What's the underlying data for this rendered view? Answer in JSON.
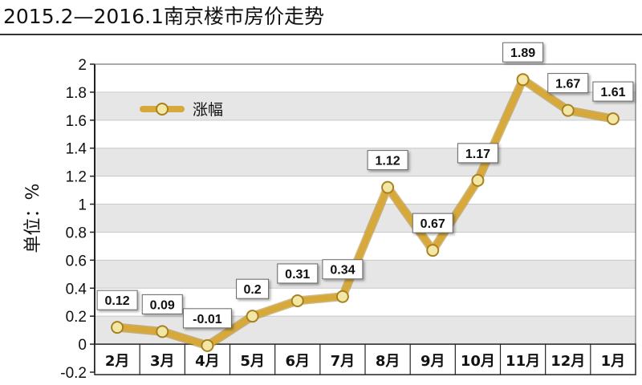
{
  "title": "2015.2—2016.1南京楼市房价走势",
  "chart_data": {
    "type": "line",
    "title": "2015.2—2016.1南京楼市房价走势",
    "ylabel": "单位：%",
    "xlabel": "",
    "categories": [
      "2月",
      "3月",
      "4月",
      "5月",
      "6月",
      "7月",
      "8月",
      "9月",
      "10月",
      "11月",
      "12月",
      "1月"
    ],
    "series": [
      {
        "name": "涨幅",
        "values": [
          0.12,
          0.09,
          -0.01,
          0.2,
          0.31,
          0.34,
          1.12,
          0.67,
          1.17,
          1.89,
          1.67,
          1.61
        ]
      }
    ],
    "data_labels": [
      "0.12",
      "0.09",
      "-0.01",
      "0.2",
      "0.31",
      "0.34",
      "1.12",
      "0.67",
      "1.17",
      "1.89",
      "1.67",
      "1.61"
    ],
    "ylim": [
      -0.2,
      2
    ],
    "yticks": [
      "-0.2",
      "0",
      "0.2",
      "0.4",
      "0.6",
      "0.8",
      "1",
      "1.2",
      "1.4",
      "1.6",
      "1.8",
      "2"
    ],
    "ytick_values": [
      -0.2,
      0,
      0.2,
      0.4,
      0.6,
      0.8,
      1,
      1.2,
      1.4,
      1.6,
      1.8,
      2
    ],
    "grid": true,
    "legend": "top-left",
    "colors": {
      "line": "#d6a93a",
      "line_dark": "#a9801f",
      "marker": "#f3e7a6",
      "band": "#e6e6e6",
      "axis": "#222222"
    }
  }
}
